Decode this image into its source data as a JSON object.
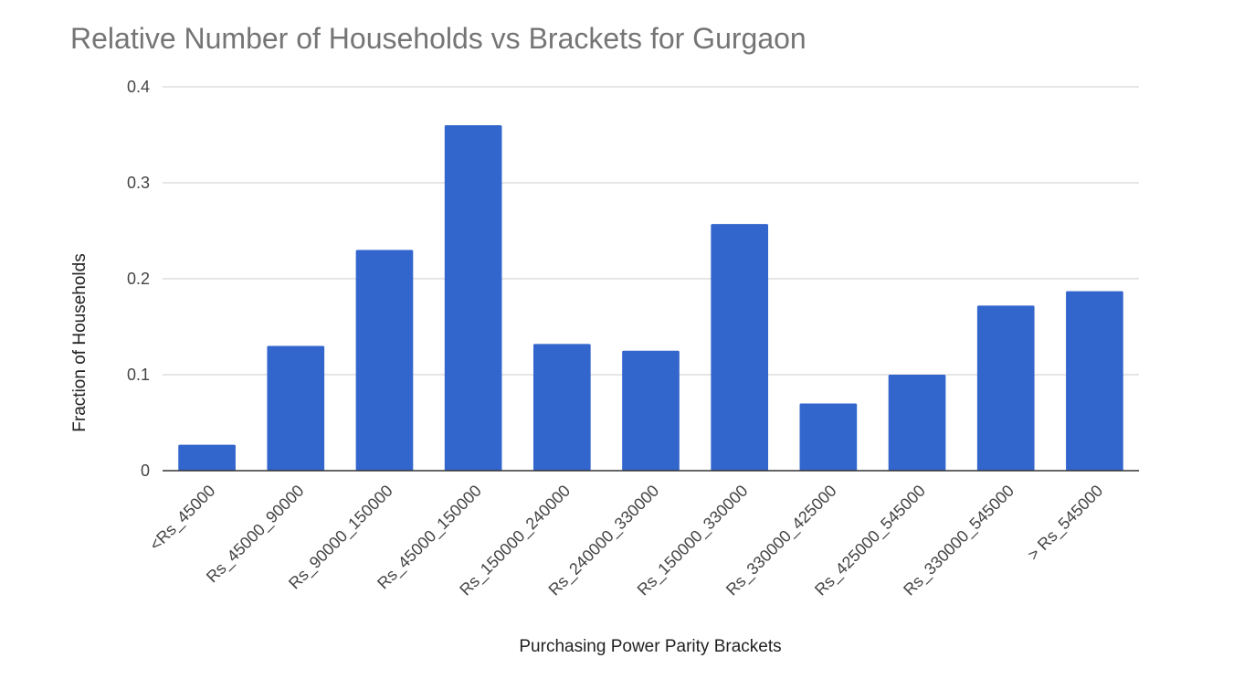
{
  "chart_data": {
    "type": "bar",
    "title": "Relative Number of Households vs Brackets for Gurgaon",
    "xlabel": "Purchasing Power Parity Brackets",
    "ylabel": "Fraction of Households",
    "categories": [
      "<Rs_45000",
      "Rs_45000_90000",
      "Rs_90000_150000",
      "Rs_45000_150000",
      "Rs_150000_240000",
      "Rs_240000_330000",
      "Rs_150000_330000",
      "Rs_330000_425000",
      "Rs_425000_545000",
      "Rs_330000_545000",
      "> Rs_545000"
    ],
    "values": [
      0.027,
      0.13,
      0.23,
      0.36,
      0.132,
      0.125,
      0.257,
      0.07,
      0.1,
      0.172,
      0.187
    ],
    "ylim": [
      0,
      0.4
    ],
    "yticks": [
      0,
      0.1,
      0.2,
      0.3,
      0.4
    ],
    "ytick_labels": [
      "0",
      "0.1",
      "0.2",
      "0.3",
      "0.4"
    ],
    "grid": true,
    "legend": "none",
    "bar_color": "#3366cc"
  }
}
